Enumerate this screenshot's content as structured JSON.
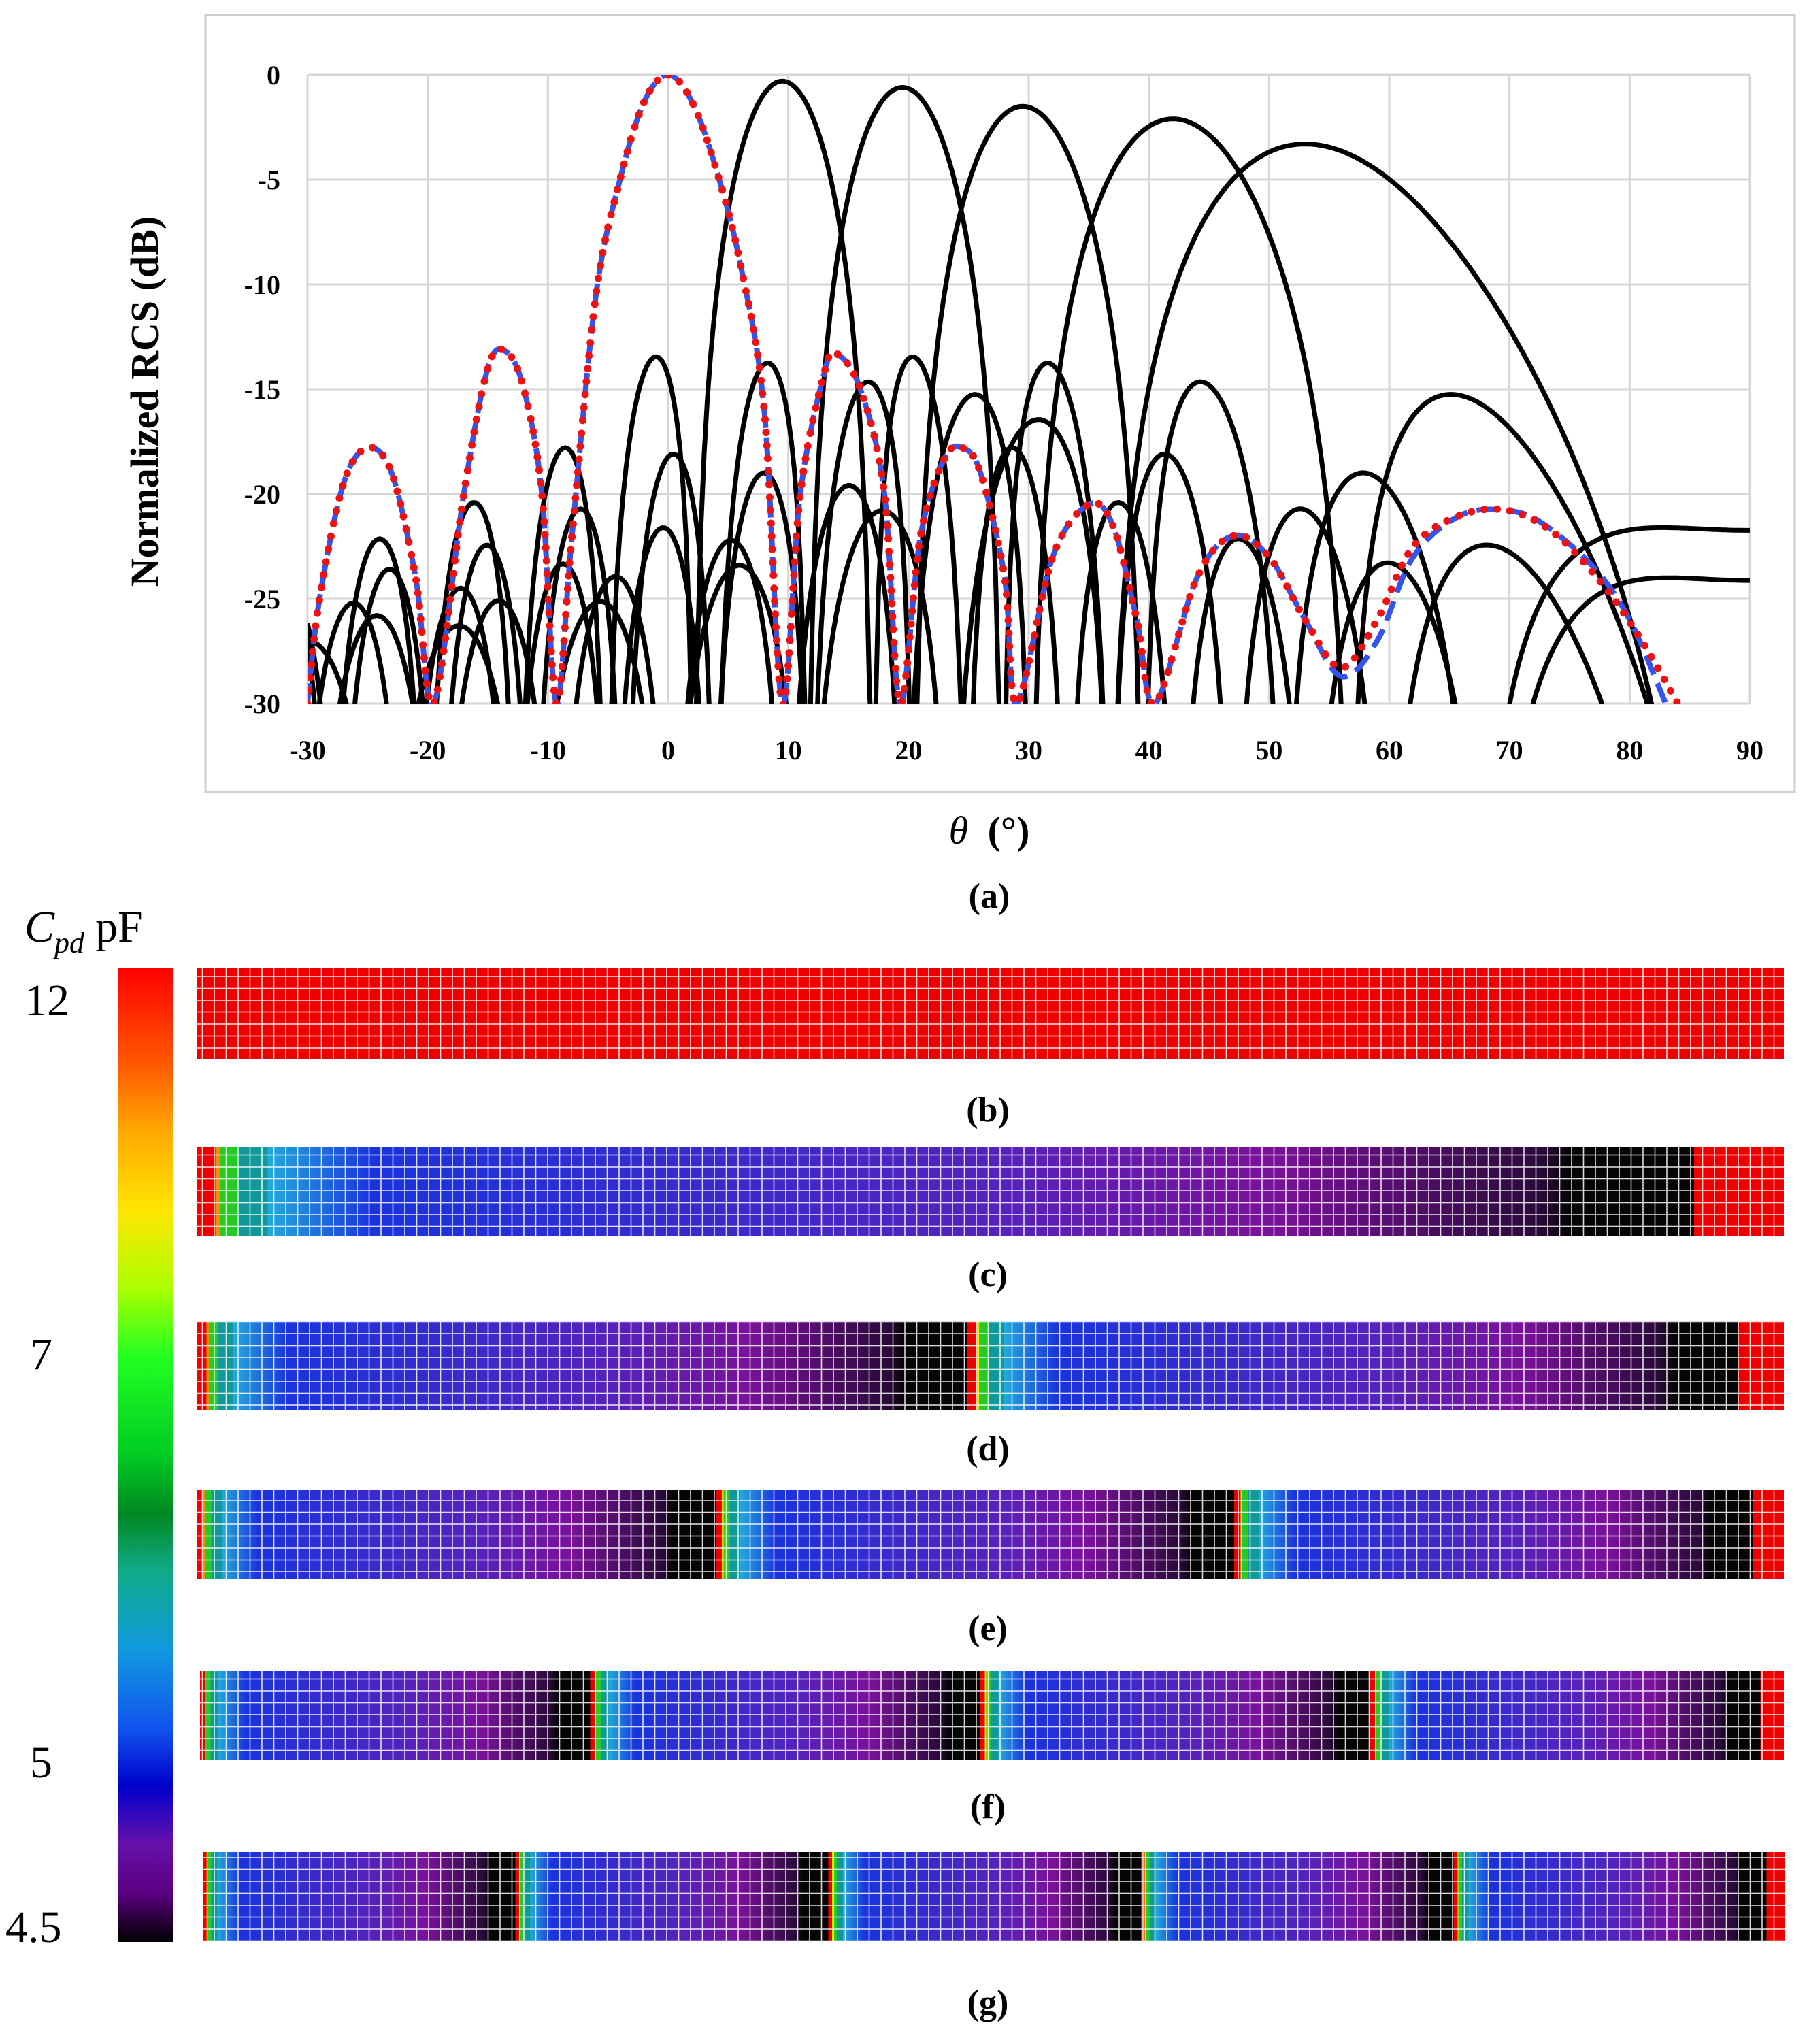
{
  "chart_data": [
    {
      "type": "line",
      "panel_label": "(a)",
      "xlabel_symbol": "θ",
      "xlabel_unit": "(°)",
      "ylabel": "Normalized RCS (dB)",
      "xlim": [
        -30,
        90
      ],
      "ylim": [
        -30,
        0
      ],
      "x_ticks": [
        -30,
        -20,
        -10,
        0,
        10,
        20,
        30,
        40,
        50,
        60,
        70,
        80,
        90
      ],
      "y_ticks": [
        0,
        -5,
        -10,
        -15,
        -20,
        -25,
        -30
      ],
      "grid": true,
      "legend": "none",
      "series": [
        {
          "style": "blue-dashed",
          "color": "#3355ee",
          "main_lobe_deg": 0,
          "peak_db": 0,
          "beamwidth_scale": 1.0,
          "points": [
            [
              -30,
              -30
            ],
            [
              -29,
              -25
            ],
            [
              -27,
              -19.5
            ],
            [
              -25,
              -17.8
            ],
            [
              -23,
              -19
            ],
            [
              -21,
              -24
            ],
            [
              -19.5,
              -30
            ],
            [
              -17,
              -20
            ],
            [
              -15,
              -14
            ],
            [
              -13.5,
              -13.2
            ],
            [
              -12,
              -15
            ],
            [
              -10.5,
              -20
            ],
            [
              -9.3,
              -30
            ],
            [
              -8,
              -22
            ],
            [
              -6,
              -10.5
            ],
            [
              -4,
              -5
            ],
            [
              -2,
              -1.3
            ],
            [
              0,
              0
            ],
            [
              2,
              -1.3
            ],
            [
              4,
              -4.5
            ],
            [
              6,
              -9
            ],
            [
              8,
              -16
            ],
            [
              9.5,
              -30
            ],
            [
              11,
              -20
            ],
            [
              13,
              -14.2
            ],
            [
              14,
              -13.3
            ],
            [
              16,
              -15
            ],
            [
              18,
              -20
            ],
            [
              19.3,
              -30
            ],
            [
              21,
              -22
            ],
            [
              23,
              -18.3
            ],
            [
              24.5,
              -17.8
            ],
            [
              26,
              -19
            ],
            [
              28,
              -24
            ],
            [
              29,
              -30
            ],
            [
              32,
              -23
            ],
            [
              35,
              -20.5
            ],
            [
              37,
              -21.5
            ],
            [
              39,
              -26
            ],
            [
              40.5,
              -30
            ],
            [
              44,
              -24
            ],
            [
              47,
              -22
            ],
            [
              50,
              -23
            ],
            [
              53,
              -26
            ],
            [
              56,
              -28.7
            ],
            [
              59,
              -27
            ],
            [
              62,
              -23
            ],
            [
              66,
              -21
            ],
            [
              70,
              -20.8
            ],
            [
              73,
              -21.5
            ],
            [
              77,
              -23.5
            ],
            [
              80,
              -26
            ],
            [
              83,
              -30
            ]
          ]
        },
        {
          "style": "red-dotted",
          "color": "#ee1111",
          "main_lobe_deg": 0,
          "peak_db": 0,
          "beamwidth_scale": 1.0,
          "points": [
            [
              -30,
              -30
            ],
            [
              -29,
              -25
            ],
            [
              -27,
              -19.5
            ],
            [
              -25,
              -17.8
            ],
            [
              -23,
              -19
            ],
            [
              -21,
              -24
            ],
            [
              -19.5,
              -30
            ],
            [
              -17,
              -20
            ],
            [
              -15,
              -14
            ],
            [
              -13.5,
              -13.2
            ],
            [
              -12,
              -15
            ],
            [
              -10.5,
              -20
            ],
            [
              -9.3,
              -30
            ],
            [
              -8,
              -22
            ],
            [
              -6,
              -10.5
            ],
            [
              -4,
              -5
            ],
            [
              -2,
              -1.3
            ],
            [
              0,
              0
            ],
            [
              2,
              -1.3
            ],
            [
              4,
              -4.5
            ],
            [
              6,
              -9
            ],
            [
              8,
              -16
            ],
            [
              9.5,
              -30
            ],
            [
              11,
              -20
            ],
            [
              13,
              -14.2
            ],
            [
              14,
              -13.3
            ],
            [
              16,
              -15
            ],
            [
              18,
              -20
            ],
            [
              19.3,
              -30
            ],
            [
              21,
              -22
            ],
            [
              23,
              -18.3
            ],
            [
              24.5,
              -17.8
            ],
            [
              26,
              -19
            ],
            [
              28,
              -24
            ],
            [
              29,
              -30
            ],
            [
              32,
              -23
            ],
            [
              35,
              -20.5
            ],
            [
              37,
              -21.5
            ],
            [
              39,
              -26
            ],
            [
              40.5,
              -30
            ],
            [
              44,
              -24
            ],
            [
              47,
              -22
            ],
            [
              50,
              -23
            ],
            [
              53,
              -26
            ],
            [
              56,
              -28.3
            ],
            [
              59,
              -26
            ],
            [
              62,
              -22.5
            ],
            [
              66,
              -21
            ],
            [
              70,
              -20.8
            ],
            [
              74,
              -22
            ],
            [
              78,
              -24.5
            ],
            [
              81,
              -27
            ],
            [
              84,
              -30
            ]
          ]
        },
        {
          "style": "black-solid",
          "color": "#000000",
          "main_lobe_deg": 9.5,
          "peak_db": -0.3,
          "beamwidth_scale": 1.02
        },
        {
          "style": "black-solid",
          "color": "#000000",
          "main_lobe_deg": 19.5,
          "peak_db": -0.6,
          "beamwidth_scale": 1.06
        },
        {
          "style": "black-solid",
          "color": "#000000",
          "main_lobe_deg": 29.5,
          "peak_db": -1.5,
          "beamwidth_scale": 1.15
        },
        {
          "style": "black-solid",
          "color": "#000000",
          "main_lobe_deg": 42,
          "peak_db": -2.1,
          "beamwidth_scale": 1.33
        },
        {
          "style": "black-solid",
          "color": "#000000",
          "main_lobe_deg": 53,
          "peak_db": -3.3,
          "beamwidth_scale": 1.6
        }
      ]
    },
    {
      "type": "heatmap",
      "colorbar": {
        "title_italic": "C",
        "title_sub": "pd",
        "title_unit": "pF",
        "ticks": [
          {
            "label": "12",
            "value": 12
          },
          {
            "label": "7",
            "value": 7
          },
          {
            "label": "5",
            "value": 5
          },
          {
            "label": "4.5",
            "value": 4.5
          }
        ],
        "stops": [
          {
            "f": 0.0,
            "color": "#ff0000"
          },
          {
            "f": 0.1,
            "color": "#ff5a00"
          },
          {
            "f": 0.17,
            "color": "#ffaa00"
          },
          {
            "f": 0.25,
            "color": "#ffe600"
          },
          {
            "f": 0.33,
            "color": "#aaff00"
          },
          {
            "f": 0.4,
            "color": "#22ff22"
          },
          {
            "f": 0.5,
            "color": "#00cc22"
          },
          {
            "f": 0.56,
            "color": "#008822"
          },
          {
            "f": 0.62,
            "color": "#11aa88"
          },
          {
            "f": 0.7,
            "color": "#1199dd"
          },
          {
            "f": 0.78,
            "color": "#1155ee"
          },
          {
            "f": 0.84,
            "color": "#0000cc"
          },
          {
            "f": 0.9,
            "color": "#6611aa"
          },
          {
            "f": 0.95,
            "color": "#5a0080"
          },
          {
            "f": 1.0,
            "color": "#000000"
          }
        ]
      },
      "strips": [
        {
          "label": "(b)",
          "periods": 0
        },
        {
          "label": "(c)",
          "periods": 1
        },
        {
          "label": "(d)",
          "periods": 2
        },
        {
          "label": "(e)",
          "periods": 3
        },
        {
          "label": "(f)",
          "periods": 4
        },
        {
          "label": "(g)",
          "periods": 5
        }
      ],
      "palette": {
        "red": "#ee0000",
        "orange": "#ff8800",
        "yellow": "#ffdd00",
        "green": "#22cc22",
        "teal": "#119999",
        "cyan": "#22aadd",
        "blue": "#1a33dd",
        "violet": "#5522bb",
        "purple": "#7a119a",
        "dark": "#2a0a3a",
        "black": "#050505"
      }
    }
  ]
}
